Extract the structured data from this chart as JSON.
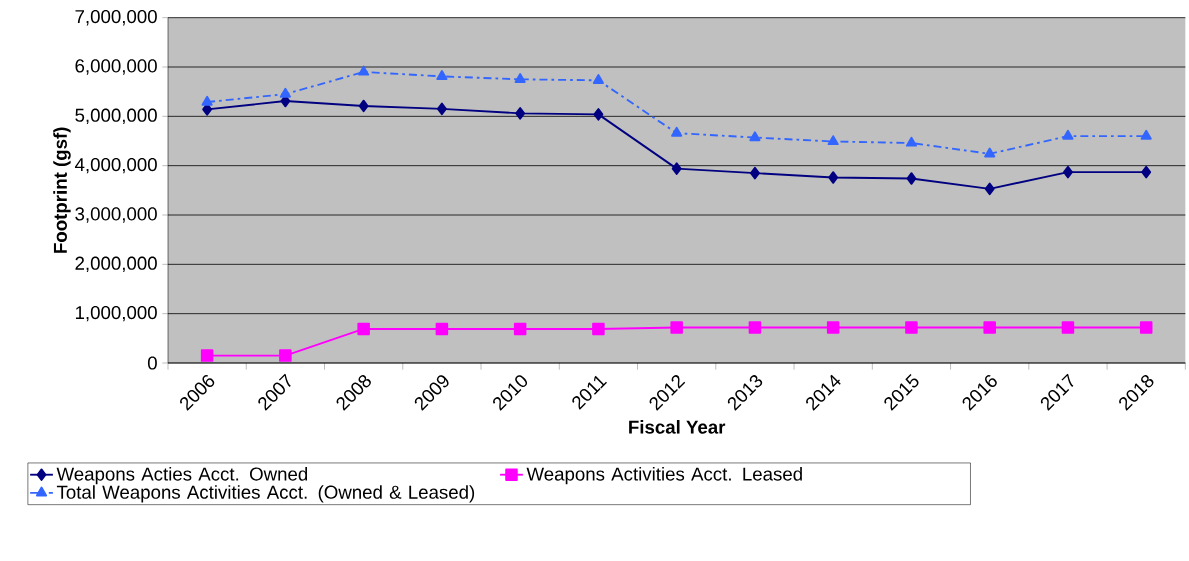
{
  "chart_data": {
    "type": "line",
    "xlabel": "Fiscal Year",
    "ylabel": "Footprint (gsf)",
    "categories": [
      "2006",
      "2007",
      "2008",
      "2009",
      "2010",
      "2011",
      "2012",
      "2013",
      "2014",
      "2015",
      "2016",
      "2017",
      "2018"
    ],
    "series": [
      {
        "name": "Weapons Acties Acct. Owned",
        "color": "#000080",
        "marker": "diamond",
        "line_style": "solid",
        "values": [
          5140000,
          5310000,
          5210000,
          5150000,
          5060000,
          5040000,
          3940000,
          3850000,
          3760000,
          3740000,
          3530000,
          3870000,
          3870000
        ]
      },
      {
        "name": "Weapons Activities Acct. Leased",
        "color": "#ff00ff",
        "marker": "square",
        "line_style": "solid",
        "values": [
          150000,
          150000,
          690000,
          690000,
          690000,
          690000,
          720000,
          720000,
          720000,
          720000,
          720000,
          720000,
          720000
        ]
      },
      {
        "name": "Total Weapons Activities Acct.  (Owned & Leased)",
        "color": "#3366ff",
        "marker": "triangle",
        "line_style": "dashdot",
        "values": [
          5290000,
          5450000,
          5900000,
          5810000,
          5750000,
          5730000,
          4660000,
          4570000,
          4490000,
          4460000,
          4240000,
          4600000,
          4600000
        ]
      }
    ],
    "ylim": [
      0,
      7000000
    ],
    "yticks": [
      0,
      {
        "value": 1000000,
        "label": "1,000,000"
      },
      {
        "value": 2000000,
        "label": "2,000,000"
      },
      {
        "value": 3000000,
        "label": "3,000,000"
      },
      {
        "value": 4000000,
        "label": "4,000,000"
      },
      {
        "value": 5000000,
        "label": "5,000,000"
      },
      {
        "value": 6000000,
        "label": "6,000,000"
      },
      {
        "value": 7000000,
        "label": "7,000,000"
      }
    ],
    "grid": "y",
    "legend": "bottom"
  }
}
